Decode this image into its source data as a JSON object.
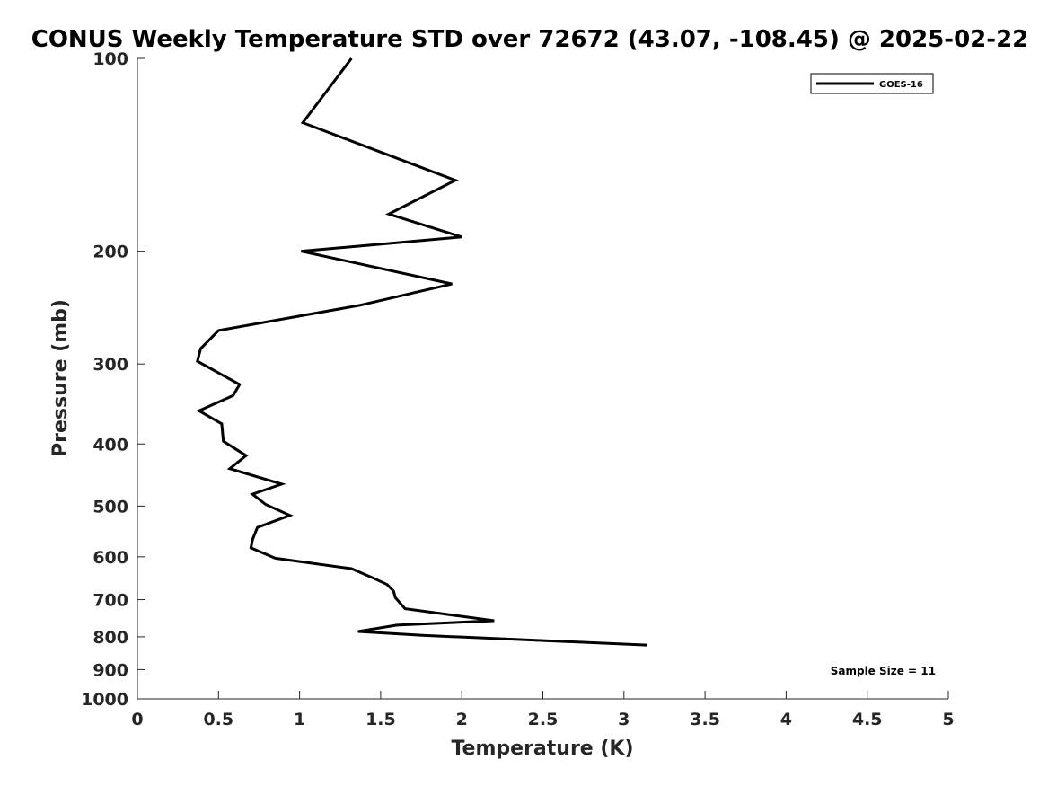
{
  "chart_data": {
    "type": "line",
    "title": "CONUS Weekly Temperature STD over 72672 (43.07, -108.45) @ 2025-02-22",
    "xlabel": "Temperature (K)",
    "ylabel": "Pressure (mb)",
    "xlim": [
      0,
      5
    ],
    "ylim": [
      1000,
      100
    ],
    "yscale": "log",
    "y_reversed": true,
    "x_ticks": [
      0,
      0.5,
      1,
      1.5,
      2,
      2.5,
      3,
      3.5,
      4,
      4.5,
      5
    ],
    "x_tick_labels": [
      "0",
      "0.5",
      "1",
      "1.5",
      "2",
      "2.5",
      "3",
      "3.5",
      "4",
      "4.5",
      "5"
    ],
    "y_ticks": [
      100,
      200,
      300,
      400,
      500,
      600,
      700,
      800,
      900,
      1000
    ],
    "y_tick_labels": [
      "100",
      "200",
      "300",
      "400",
      "500",
      "600",
      "700",
      "800",
      "900",
      "1000"
    ],
    "grid": false,
    "legend_position": "top-right",
    "annotation": "Sample Size = 11",
    "series": [
      {
        "name": "GOES-16",
        "color": "#000000",
        "x": [
          1.32,
          1.02,
          1.96,
          1.55,
          2.0,
          1.01,
          1.94,
          1.37,
          0.5,
          0.39,
          0.37,
          0.63,
          0.59,
          0.38,
          0.52,
          0.53,
          0.67,
          0.57,
          0.89,
          0.71,
          0.79,
          0.94,
          0.74,
          0.71,
          0.7,
          0.85,
          1.32,
          1.45,
          1.54,
          1.58,
          1.59,
          1.65,
          2.2,
          1.6,
          1.36,
          1.77,
          3.14
        ],
        "y": [
          100,
          126,
          155,
          175,
          190,
          200,
          225,
          243,
          266,
          284,
          297,
          323,
          336,
          355,
          372,
          396,
          417,
          437,
          462,
          479,
          497,
          517,
          540,
          564,
          581,
          603,
          626,
          647,
          663,
          679,
          695,
          723,
          755,
          767,
          785,
          796,
          824
        ]
      }
    ]
  }
}
